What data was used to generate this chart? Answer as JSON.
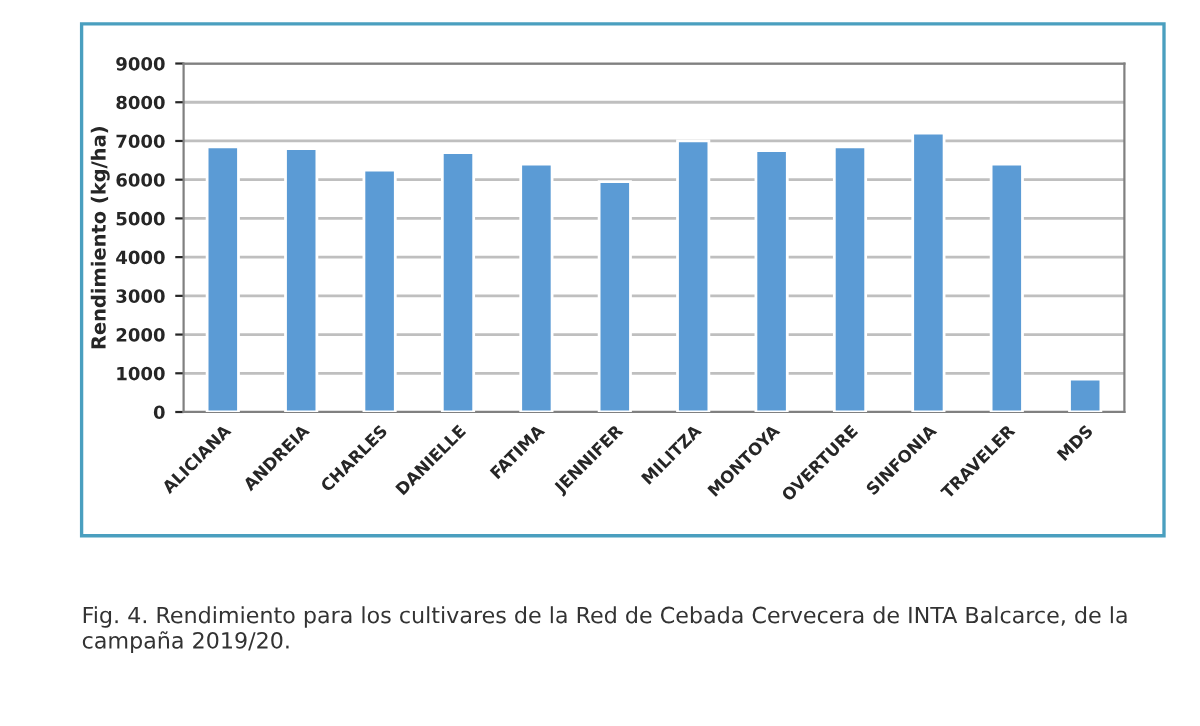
{
  "chart_data": {
    "type": "bar",
    "ylabel": "Rendimiento (kg/ha)",
    "categories": [
      "ALICIANA",
      "ANDREIA",
      "CHARLES",
      "DANIELLE",
      "FATIMA",
      "JENNIFER",
      "MILITZA",
      "MONTOYA",
      "OVERTURE",
      "SINFONIA",
      "TRAVELER",
      "MDS"
    ],
    "values": [
      6850,
      6800,
      6250,
      6700,
      6400,
      5950,
      7000,
      6750,
      6850,
      7200,
      6400,
      850
    ],
    "color": "#5b9bd5",
    "ylim": [
      0,
      9000
    ],
    "yticks": [
      0,
      1000,
      2000,
      3000,
      4000,
      5000,
      6000,
      7000,
      8000,
      9000
    ],
    "grid": "y",
    "annotations": [
      "Fig. 4. Rendimiento para los cultivares de la Red de Cebada Cervecera de INTA Balcarce, de la campaña 2019/20."
    ]
  }
}
